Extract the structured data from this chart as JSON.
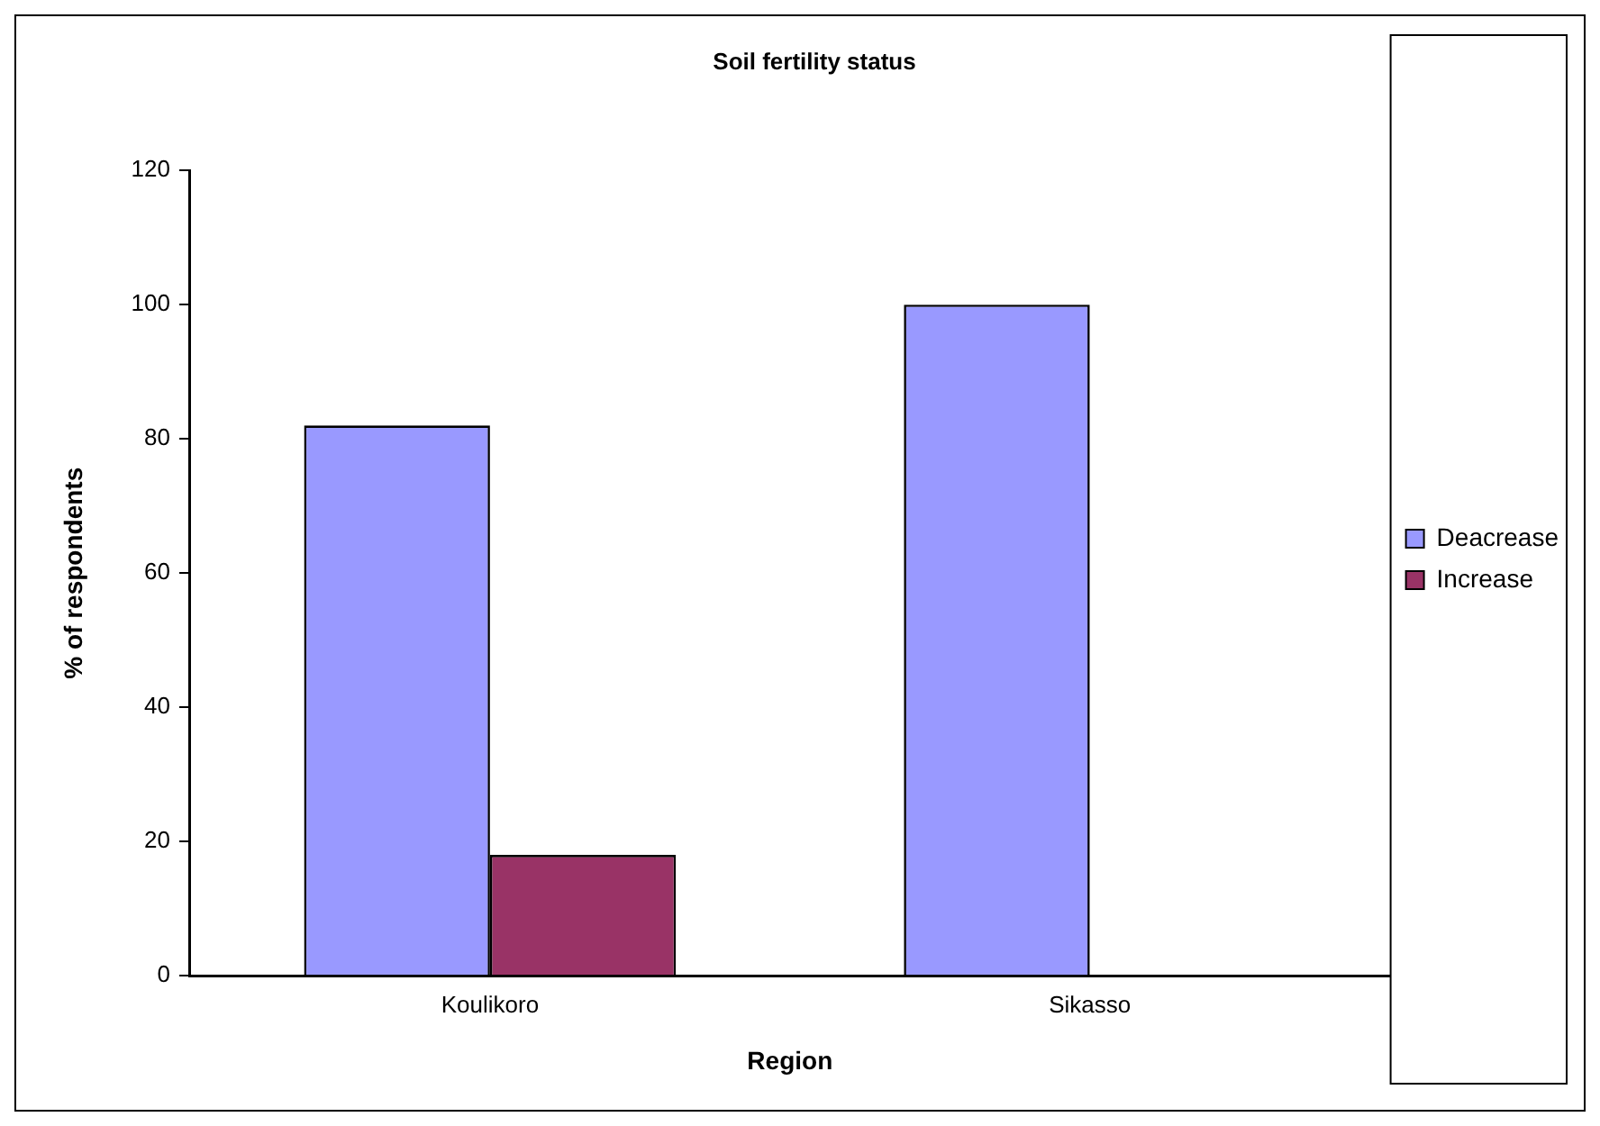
{
  "chart_data": {
    "type": "bar",
    "title": "Soil fertility status",
    "xlabel": "Region",
    "ylabel": "% of respondents",
    "categories": [
      "Koulikoro",
      "Sikasso"
    ],
    "series": [
      {
        "name": "Deacrease",
        "color": "#9999ff",
        "values": [
          82,
          100
        ]
      },
      {
        "name": "Increase",
        "color": "#993366",
        "values": [
          18,
          0
        ]
      }
    ],
    "ylim": [
      0,
      120
    ],
    "yticks": [
      0,
      20,
      40,
      60,
      80,
      100,
      120
    ],
    "grid": false,
    "legend": "right"
  }
}
